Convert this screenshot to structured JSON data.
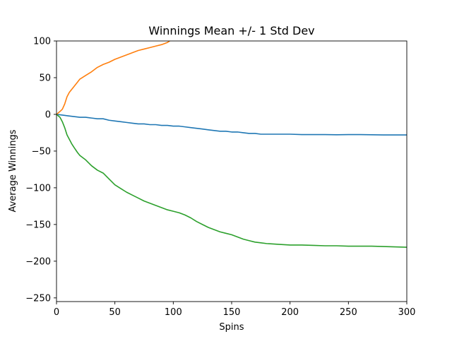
{
  "chart_data": {
    "type": "line",
    "title": "Winnings Mean +/- 1 Std Dev",
    "xlabel": "Spins",
    "ylabel": "Average Winnings",
    "xlim": [
      0,
      300
    ],
    "ylim": [
      -255,
      100
    ],
    "xticks": [
      0,
      50,
      100,
      150,
      200,
      250,
      300
    ],
    "yticks": [
      100,
      50,
      0,
      -50,
      -100,
      -150,
      -200,
      -250
    ],
    "xtick_labels": [
      "0",
      "50",
      "100",
      "150",
      "200",
      "250",
      "300"
    ],
    "ytick_labels": [
      "100",
      "50",
      "0",
      "−50",
      "−100",
      "−150",
      "−200",
      "−250"
    ],
    "grid": false,
    "series": [
      {
        "color": "#1f77b4",
        "x": [
          0,
          5,
          10,
          15,
          20,
          25,
          30,
          35,
          40,
          45,
          50,
          55,
          60,
          65,
          70,
          75,
          80,
          85,
          90,
          95,
          100,
          105,
          110,
          115,
          120,
          125,
          130,
          135,
          140,
          145,
          150,
          155,
          160,
          165,
          170,
          175,
          180,
          185,
          190,
          195,
          200,
          210,
          220,
          230,
          240,
          250,
          260,
          270,
          280,
          290,
          300
        ],
        "y": [
          0,
          -1,
          -2,
          -3,
          -4,
          -4,
          -5,
          -6,
          -6,
          -8,
          -9,
          -10,
          -11,
          -12,
          -13,
          -13,
          -14,
          -14,
          -15,
          -15,
          -16,
          -16,
          -17,
          -18,
          -19,
          -20,
          -21,
          -22,
          -23,
          -23,
          -24,
          -24,
          -25,
          -26,
          -26,
          -27,
          -27,
          -27,
          -27,
          -27,
          -27,
          -27.5,
          -27.5,
          -27.5,
          -27.8,
          -27.5,
          -27.5,
          -27.8,
          -28,
          -28,
          -28
        ]
      },
      {
        "color": "#ff7f0e",
        "x": [
          0,
          3,
          5,
          7,
          9,
          11,
          13,
          15,
          18,
          20,
          25,
          30,
          35,
          40,
          45,
          50,
          55,
          60,
          65,
          70,
          75,
          80,
          85,
          90,
          95,
          97
        ],
        "y": [
          0,
          4,
          7,
          14,
          24,
          30,
          34,
          38,
          44,
          48,
          53,
          58,
          64,
          68,
          71,
          75,
          78,
          81,
          84,
          87,
          89,
          91,
          93,
          95,
          98,
          100
        ]
      },
      {
        "color": "#2ca02c",
        "x": [
          0,
          3,
          5,
          7,
          9,
          11,
          13,
          15,
          18,
          20,
          25,
          30,
          35,
          40,
          45,
          50,
          55,
          60,
          65,
          70,
          75,
          80,
          85,
          90,
          95,
          100,
          105,
          110,
          115,
          120,
          125,
          130,
          135,
          140,
          145,
          150,
          155,
          160,
          165,
          170,
          175,
          180,
          190,
          200,
          210,
          220,
          230,
          240,
          250,
          260,
          270,
          280,
          290,
          300
        ],
        "y": [
          0,
          -4,
          -10,
          -18,
          -28,
          -34,
          -40,
          -45,
          -52,
          -56,
          -62,
          -70,
          -76,
          -80,
          -88,
          -96,
          -101,
          -106,
          -110,
          -114,
          -118,
          -121,
          -124,
          -127,
          -130,
          -132,
          -134,
          -137,
          -141,
          -146,
          -150,
          -154,
          -157,
          -160,
          -162,
          -164,
          -167,
          -170,
          -172,
          -174,
          -175,
          -176,
          -177,
          -178,
          -178,
          -178.5,
          -179,
          -179,
          -179.5,
          -179.5,
          -179.5,
          -180,
          -180.5,
          -181
        ]
      }
    ]
  }
}
